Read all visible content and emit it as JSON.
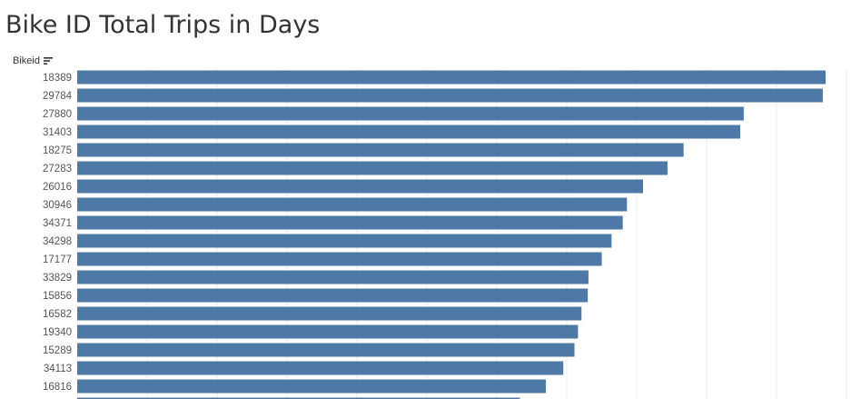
{
  "header": {
    "title": "Bike ID Total Trips in Days",
    "field_label": "Bikeid"
  },
  "colors": {
    "bar": "#4e79a7",
    "grid": "#ececec",
    "axis_text": "#555555"
  },
  "icons": {
    "sort": "sort-descending-icon"
  },
  "chart_data": {
    "type": "bar",
    "orientation": "horizontal",
    "xlabel": "",
    "ylabel": "Bikeid",
    "grid": "vertical",
    "xlim": [
      0,
      10700
    ],
    "categories": [
      "18389",
      "29784",
      "27880",
      "31403",
      "18275",
      "27283",
      "26016",
      "30946",
      "34371",
      "34298",
      "17177",
      "33829",
      "15856",
      "16582",
      "19340",
      "15289",
      "34113",
      "16816",
      ""
    ],
    "values": [
      10700,
      10660,
      9530,
      9480,
      8670,
      8440,
      8090,
      7860,
      7800,
      7640,
      7500,
      7310,
      7300,
      7210,
      7160,
      7110,
      6950,
      6700,
      6330
    ],
    "sorted": "descending"
  }
}
